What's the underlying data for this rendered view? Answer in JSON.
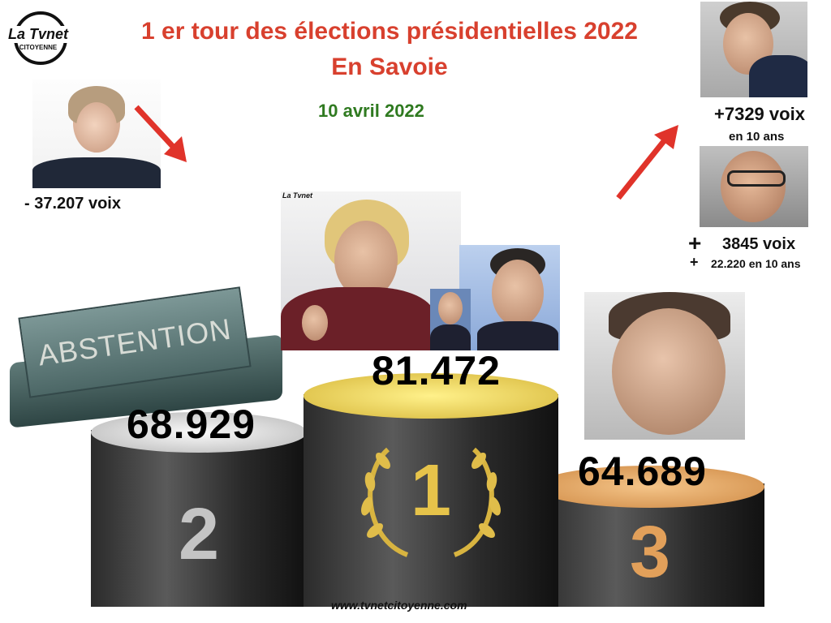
{
  "logo": {
    "line1": "La Tvnet",
    "line2": "CITOYENNE"
  },
  "title": {
    "line1": "1 er tour des élections présidentielles 2022",
    "line2": "En Savoie"
  },
  "date": "10 avril 2022",
  "pecresse": {
    "delta": "- 37.207 voix"
  },
  "jadot": {
    "delta": "+7329 voix",
    "period": "en 10 ans"
  },
  "melenchon": {
    "plus1": "+",
    "delta": "3845 voix",
    "plus2": "+",
    "period": "22.220 en 10 ans"
  },
  "abstention_sign": "ABSTENTION",
  "photo_logo": "La Tvnet",
  "podium": {
    "first": {
      "rank": "1",
      "value": "81.472"
    },
    "second": {
      "rank": "2",
      "value": "68.929"
    },
    "third": {
      "rank": "3",
      "value": "64.689"
    }
  },
  "footer": "www.tvnetcitoyenne.com",
  "colors": {
    "title": "#d8402e",
    "date": "#2f7a20",
    "arrow": "#e0332a",
    "gold": "#e8c84a",
    "bronze": "#e8a65a"
  }
}
